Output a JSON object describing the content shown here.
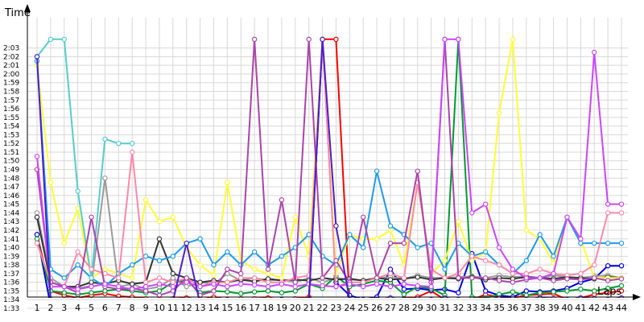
{
  "chart_data": {
    "type": "line",
    "title": "",
    "xlabel": "Laps",
    "ylabel": "Time",
    "xlim": [
      1,
      44
    ],
    "ylim_seconds": [
      92.5,
      123.8
    ],
    "y_ticks": [
      "1:33",
      "1:34",
      "1:35",
      "1:36",
      "1:37",
      "1:38",
      "1:39",
      "1:40",
      "1:41",
      "1:42",
      "1:43",
      "1:44",
      "1:45",
      "1:46",
      "1:47",
      "1:48",
      "1:49",
      "1:50",
      "1:51",
      "1:52",
      "1:53",
      "1:54",
      "1:55",
      "1:56",
      "1:57",
      "1:58",
      "1:59",
      "2:00",
      "2:01",
      "2:02",
      "2:03"
    ],
    "x_ticks": [
      "1",
      "2",
      "3",
      "4",
      "5",
      "6",
      "7",
      "8",
      "9",
      "10",
      "11",
      "12",
      "13",
      "14",
      "15",
      "16",
      "17",
      "18",
      "19",
      "20",
      "21",
      "22",
      "23",
      "24",
      "25",
      "26",
      "27",
      "28",
      "29",
      "30",
      "31",
      "32",
      "33",
      "34",
      "35",
      "36",
      "37",
      "38",
      "39",
      "40",
      "41",
      "42",
      "43",
      "44"
    ],
    "grid": true,
    "legend": "none",
    "y_unit": "seconds",
    "series": [
      {
        "color": "#ff0000",
        "x": [
          1,
          2,
          3,
          4,
          5,
          6,
          7,
          8,
          9,
          10,
          11,
          12,
          13,
          14,
          15,
          16,
          17,
          18,
          19,
          20,
          21,
          22,
          23,
          24,
          25,
          26,
          27,
          28,
          29,
          30,
          31,
          32,
          33,
          34,
          35,
          36,
          37,
          38,
          39,
          40,
          41,
          42,
          43,
          44
        ],
        "y": [
          101.5,
          95.0,
          94.5,
          94.2,
          94.5,
          94.7,
          94.4,
          94.3,
          94.1,
          94.0,
          94.1,
          94.2,
          94.0,
          94.3,
          94.0,
          94.1,
          94.1,
          94.2,
          94.0,
          94.1,
          94.3,
          124,
          124,
          93.8,
          93.7,
          93.9,
          94.0,
          94.1,
          94.3,
          95.0,
          94.0,
          93.9,
          94.0,
          94.6,
          94.3,
          94.2,
          94.5,
          94.6,
          94.7,
          94.0,
          94.2,
          94.6,
          94.8,
          95.0
        ]
      },
      {
        "color": "#0000dd",
        "x": [
          1,
          2,
          3,
          4,
          5,
          6,
          7,
          8,
          9,
          10,
          11,
          12,
          13,
          14,
          15,
          16,
          17,
          18,
          19,
          20,
          21,
          22,
          23,
          24,
          25,
          26,
          27,
          28,
          29,
          30,
          31,
          32,
          33,
          34,
          35,
          36,
          37,
          38,
          39,
          40,
          41,
          42,
          43,
          44
        ],
        "y": [
          101.5,
          93.3,
          93.2,
          93.0,
          92.7,
          93.0,
          93.3,
          93.1,
          93.2,
          93.5,
          93.7,
          93.8,
          93.4,
          93.5,
          93.7,
          93.8,
          93.7,
          93.9,
          94.0,
          93.9,
          94.0,
          124,
          96.0,
          94.5,
          94.0,
          94.3,
          97.5,
          95.2,
          95.3,
          95.1,
          95.2,
          94.8,
          99.3,
          95.0,
          94.5,
          94.3,
          95.0,
          94.9,
          95.0,
          95.3,
          96.0,
          96.4,
          97.9,
          97.9
        ]
      },
      {
        "color": "#009933",
        "x": [
          1,
          2,
          3,
          4,
          5,
          6,
          7,
          8,
          9,
          10,
          11,
          12,
          13,
          14,
          15,
          16,
          17,
          18,
          19,
          20,
          21,
          22,
          23,
          24,
          25,
          26,
          27,
          28,
          29,
          30,
          31,
          32,
          33,
          34,
          35,
          36,
          37,
          38,
          39,
          40,
          41,
          42,
          43,
          44
        ],
        "y": [
          101.0,
          95.0,
          94.8,
          94.6,
          94.8,
          95.0,
          95.2,
          95.0,
          94.8,
          95.0,
          96.0,
          96.2,
          94.8,
          95.0,
          94.9,
          94.7,
          94.9,
          95.0,
          94.8,
          95.0,
          95.8,
          95.3,
          96.7,
          95.5,
          95.8,
          96.2,
          96.0,
          94.6,
          95.5,
          95.3,
          94.5,
          124,
          94.3,
          94.2,
          94.6,
          94.9,
          94.5,
          94.8,
          94.9,
          95.0,
          95.2,
          95.0,
          95.3,
          95.6
        ]
      },
      {
        "color": "#9a9a9a",
        "x": [
          1,
          2,
          3,
          4,
          5,
          6,
          7,
          8,
          9,
          10,
          11,
          12,
          13,
          14,
          15,
          16,
          17,
          18,
          19,
          20,
          21,
          22,
          23,
          24,
          25,
          26,
          27,
          28,
          29,
          30,
          31,
          32,
          33,
          34,
          35,
          36,
          37,
          38,
          39,
          40,
          41,
          42,
          43,
          44
        ],
        "y": [
          104.0,
          96.5,
          95.5,
          95.3,
          95.6,
          108.0,
          95.5,
          95.8,
          95.2,
          95.5,
          96.5,
          95.5,
          96.0,
          95.8,
          97.0,
          96.2,
          96.5,
          96.2,
          96.3,
          96.0,
          96.5,
          96.0,
          96.5,
          96.3,
          96.2,
          96.5,
          96.6,
          96.4,
          96.8,
          96.5,
          96.5,
          96.6,
          96.7,
          96.5,
          96.8,
          96.6,
          96.7,
          96.5,
          96.8,
          96.6,
          96.5,
          96.7,
          96.8,
          96.5
        ]
      },
      {
        "color": "#333333",
        "x": [
          1,
          2,
          3,
          4,
          5,
          6,
          7,
          8,
          9,
          10,
          11,
          12,
          13,
          14,
          15,
          16,
          17,
          18,
          19,
          20,
          21,
          22,
          23,
          24,
          25,
          26,
          27,
          28,
          29,
          30,
          31,
          32,
          33,
          34,
          35,
          36,
          37,
          38,
          39,
          40,
          41,
          42,
          43,
          44
        ],
        "y": [
          103.5,
          96.0,
          95.5,
          95.5,
          96.0,
          95.8,
          96.2,
          95.8,
          96.0,
          101.0,
          97.0,
          96.5,
          96.0,
          96.2,
          96.0,
          96.3,
          96.1,
          96.4,
          96.2,
          96.3,
          96.2,
          96.5,
          96.3,
          96.4,
          96.2,
          96.5,
          96.3,
          96.4,
          96.6,
          96.3,
          96.5,
          96.4,
          96.6,
          96.3,
          96.5,
          96.4,
          96.6,
          96.5,
          96.4,
          96.6,
          96.5,
          96.4,
          96.6,
          96.5
        ]
      },
      {
        "color": "#ffff33",
        "x": [
          1,
          2,
          3,
          4,
          5,
          6,
          7,
          8,
          9,
          10,
          11,
          12,
          13,
          14,
          15,
          16,
          17,
          18,
          19,
          20,
          21,
          22,
          23,
          24,
          25,
          26,
          27,
          28,
          29,
          30,
          31,
          32,
          33,
          34,
          35,
          36,
          37,
          38,
          39,
          40,
          41,
          42,
          43,
          44
        ],
        "y": [
          121.0,
          107.5,
          100.5,
          104.5,
          96.5,
          97.5,
          97.0,
          96.5,
          105.5,
          103.0,
          103.5,
          100.0,
          98.0,
          96.8,
          107.5,
          98.5,
          97.5,
          97.0,
          96.5,
          103.5,
          99.0,
          124,
          97.0,
          101.5,
          101.0,
          101.0,
          102.0,
          98.0,
          107.5,
          97.0,
          98.5,
          103.0,
          98.5,
          99.5,
          115.5,
          124,
          102.0,
          101.0,
          98.2,
          103.5,
          101.0,
          96.5,
          96.5,
          96.5
        ]
      },
      {
        "color": "#1e9be6",
        "x": [
          1,
          2,
          3,
          4,
          5,
          6,
          7,
          8,
          9,
          10,
          11,
          12,
          13,
          14,
          15,
          16,
          17,
          18,
          19,
          20,
          21,
          22,
          23,
          24,
          25,
          26,
          27,
          28,
          29,
          30,
          31,
          32,
          33,
          34,
          35,
          36,
          37,
          38,
          39,
          40,
          41,
          42,
          43,
          44
        ],
        "y": [
          121.5,
          97.5,
          96.5,
          98.0,
          96.5,
          95.5,
          97.0,
          98.0,
          99.0,
          98.5,
          99.0,
          100.5,
          101.0,
          98.0,
          99.5,
          98.0,
          99.5,
          98.0,
          99.0,
          100.0,
          101.5,
          99.0,
          98.0,
          101.5,
          100.0,
          108.8,
          102.5,
          101.5,
          100.0,
          100.5,
          97.5,
          100.5,
          99.0,
          99.5,
          98.0,
          97.0,
          98.5,
          101.5,
          99.0,
          103.5,
          100.5,
          100.5,
          100.5,
          100.5
        ]
      },
      {
        "color": "#55cccc",
        "x": [
          1,
          2,
          3,
          4,
          5,
          6,
          7,
          8
        ],
        "y": [
          122.0,
          124,
          124,
          106.5,
          96.5,
          112.5,
          112.0,
          112.0
        ]
      },
      {
        "color": "#ff88aa",
        "x": [
          1,
          2,
          3,
          4,
          5,
          6,
          7,
          8,
          9,
          10,
          11,
          12,
          13,
          14,
          15,
          16,
          17,
          18,
          19,
          20,
          21,
          22,
          23,
          24,
          25,
          26,
          27,
          28,
          29,
          30,
          31,
          32,
          33,
          34,
          35,
          36,
          37,
          38,
          39,
          40,
          41,
          42,
          43,
          44
        ],
        "y": [
          100.5,
          96.0,
          95.5,
          99.5,
          97.5,
          97.0,
          96.5,
          111.0,
          96.0,
          96.5,
          96.0,
          96.5,
          95.5,
          96.0,
          96.0,
          96.5,
          96.5,
          96.0,
          96.0,
          96.5,
          96.8,
          124,
          95.5,
          96.0,
          96.0,
          96.5,
          97.0,
          96.5,
          107.5,
          97.5,
          96.5,
          97.0,
          99.0,
          98.5,
          98.0,
          97.0,
          97.0,
          97.5,
          97.0,
          96.8,
          97.0,
          98.0,
          104.0,
          104.0
        ]
      },
      {
        "color": "#aa44aa",
        "x": [
          1,
          2,
          3,
          4,
          5,
          6,
          7,
          8,
          9,
          10,
          11,
          12,
          13,
          14,
          15,
          16,
          17,
          18,
          19,
          20,
          21,
          22,
          23,
          24,
          25,
          26,
          27,
          28,
          29,
          30,
          31,
          32,
          33,
          34,
          35,
          36,
          37,
          38,
          39,
          40,
          41,
          42,
          43,
          44
        ],
        "y": [
          109.0,
          96.0,
          95.5,
          94.8,
          103.5,
          95.5,
          95.2,
          95.3,
          95.0,
          94.5,
          95.0,
          96.5,
          94.5,
          95.0,
          97.5,
          97.0,
          124,
          97.5,
          105.5,
          96.0,
          124,
          96.5,
          98.5,
          96.0,
          103.5,
          96.5,
          100.5,
          100.5,
          108.8,
          96.0,
          124,
          96.5,
          96.5,
          96.5,
          96.2,
          96.0,
          96.3,
          96.5,
          96.2,
          96.4,
          96.3,
          96.5,
          96.2,
          96.4
        ]
      },
      {
        "color": "#cc44ff",
        "x": [
          1,
          2,
          3,
          4,
          5,
          6,
          7,
          8,
          9,
          10,
          11,
          12,
          13,
          14,
          15,
          16,
          17,
          18,
          19,
          20,
          21,
          22,
          23,
          24,
          25,
          26,
          27,
          28,
          29,
          30,
          31,
          32,
          33,
          34,
          35,
          36,
          37,
          38,
          39,
          40,
          41,
          42,
          43,
          44
        ],
        "y": [
          110.5,
          95.5,
          95.5,
          95.2,
          95.5,
          95.8,
          95.5,
          95.2,
          95.5,
          95.8,
          95.5,
          96.0,
          95.5,
          95.8,
          95.5,
          95.8,
          95.7,
          95.5,
          95.8,
          95.5,
          95.8,
          95.6,
          95.5,
          95.8,
          95.5,
          95.8,
          95.5,
          95.8,
          95.6,
          95.5,
          124,
          124,
          104.0,
          105.0,
          100.0,
          97.5,
          96.5,
          96.5,
          97.0,
          103.5,
          101.0,
          122.5,
          105.0,
          105.0
        ]
      },
      {
        "color": "#4a1fcc",
        "x": [
          1,
          2,
          3,
          4,
          5,
          6,
          7,
          8,
          9,
          10,
          11,
          12,
          13,
          14,
          15,
          16,
          17,
          18,
          19,
          20,
          21,
          22,
          23,
          24,
          25,
          26,
          27,
          28,
          29,
          30,
          31,
          32,
          33,
          34,
          35,
          36,
          37,
          38,
          39,
          40,
          41,
          42,
          43,
          44
        ],
        "y": [
          122.0,
          94.0,
          93.5,
          93.5,
          93.8,
          93.5,
          93.7,
          93.5,
          93.8,
          93.6,
          93.8,
          100.5,
          93.5,
          93.8,
          93.5,
          93.7,
          93.6,
          93.5,
          93.8,
          93.7,
          93.8,
          124,
          102.5,
          94.0,
          93.8,
          94.0,
          94.2,
          94.0,
          94.1,
          94.0,
          94.2,
          94.0,
          94.1,
          94.0,
          94.2,
          94.1,
          94.0,
          94.2,
          94.1,
          94.0,
          94.2,
          94.1,
          94.0,
          94.2
        ]
      }
    ]
  }
}
